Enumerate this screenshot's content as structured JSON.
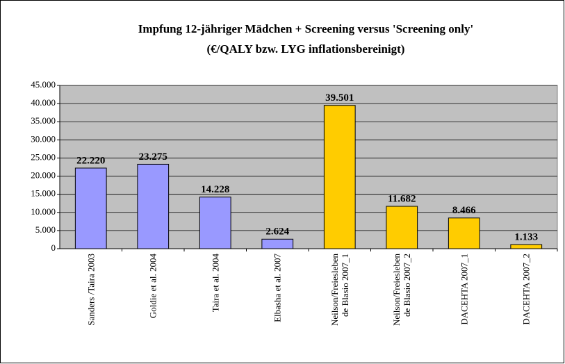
{
  "chart_data": {
    "type": "bar",
    "title": "Impfung 12-jähriger Mädchen + Screening versus 'Screening only'",
    "subtitle": "(€/QALY bzw. LYG inflationsbereinigt)",
    "categories": [
      "Sanders /Taira 2003",
      "Goldie et al. 2004",
      "Taira et al. 2004",
      "Elbasha et al. 2007",
      "Neilson/Freiesleben\nde Blasio 2007_1",
      "Neilson/Freiesleben\nde Blasio 2007_2",
      "DACEHTA 2007_1",
      "DACEHTA 2007_2"
    ],
    "values": [
      22220,
      23275,
      14228,
      2624,
      39501,
      11682,
      8466,
      1133
    ],
    "value_labels": [
      "22.220",
      "23.275",
      "14.228",
      "2.624",
      "39.501",
      "11.682",
      "8.466",
      "1.133"
    ],
    "colors": [
      "#9999ff",
      "#9999ff",
      "#9999ff",
      "#9999ff",
      "#ffcc00",
      "#ffcc00",
      "#ffcc00",
      "#ffcc00"
    ],
    "ylim": [
      0,
      45000
    ],
    "yticks": [
      0,
      {
        "value": 5000,
        "label": "5.000"
      },
      {
        "value": 10000,
        "label": "10.000"
      },
      {
        "value": 15000,
        "label": "15.000"
      },
      {
        "value": 20000,
        "label": "20.000"
      },
      {
        "value": 25000,
        "label": "25.000"
      },
      {
        "value": 30000,
        "label": "30.000"
      },
      {
        "value": 35000,
        "label": "35.000"
      },
      {
        "value": 40000,
        "label": "40.000"
      },
      {
        "value": 45000,
        "label": "45.000"
      }
    ],
    "grid": true
  }
}
